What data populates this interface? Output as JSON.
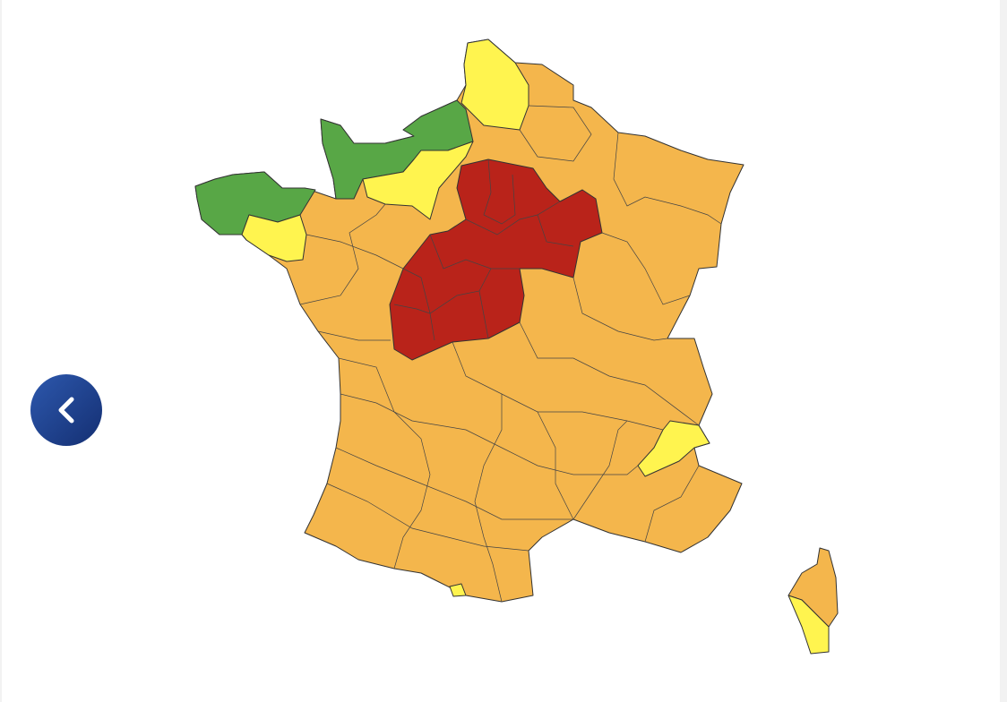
{
  "navigation": {
    "previous_icon": "chevron-left-icon"
  },
  "map": {
    "colors": {
      "green": "#58a746",
      "yellow": "#fff44f",
      "orange": "#f4b64c",
      "red": "#b9231a",
      "border": "#333333",
      "button": "#1f3f8f"
    },
    "zones": [
      {
        "id": "mainland",
        "level": "orange"
      },
      {
        "id": "centre",
        "level": "red"
      },
      {
        "id": "normandie",
        "level": "green"
      },
      {
        "id": "bretagne-nord",
        "level": "green"
      },
      {
        "id": "nord",
        "level": "yellow"
      },
      {
        "id": "ile-de-france-west",
        "level": "yellow"
      },
      {
        "id": "morbihan",
        "level": "yellow"
      },
      {
        "id": "hautes-alpes",
        "level": "yellow"
      },
      {
        "id": "pyrenees-small",
        "level": "yellow"
      },
      {
        "id": "corse-nord",
        "level": "orange"
      },
      {
        "id": "corse-sud",
        "level": "yellow"
      }
    ]
  }
}
